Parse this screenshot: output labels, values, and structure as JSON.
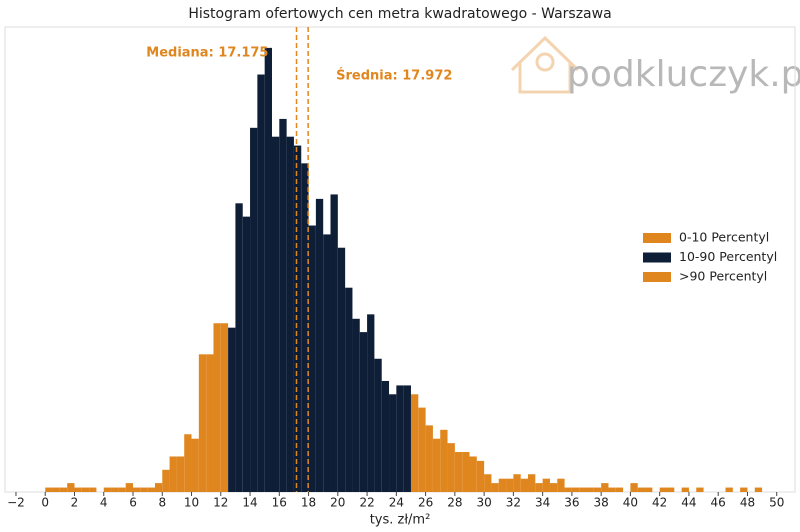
{
  "chart_data": {
    "type": "histogram",
    "title": "Histogram ofertowych cen metra kwadratowego - Warszawa",
    "xlabel": "tys. zł/m²",
    "watermark": "podkluczyk.pl",
    "series": [
      {
        "name": "0-10 Percentyl",
        "color": "#e0861f",
        "bins": [
          0,
          0.5,
          1,
          1.5,
          2,
          2.5,
          3,
          3.5,
          4,
          4.5,
          5,
          5.5,
          6,
          6.5,
          7,
          7.5,
          8,
          8.5,
          9,
          9.5,
          10,
          10.5,
          11,
          11.5,
          12,
          12.5
        ],
        "values": [
          1,
          1,
          1,
          2,
          1,
          1,
          1,
          0,
          1,
          1,
          1,
          2,
          1,
          1,
          1,
          2,
          5,
          8,
          8,
          13,
          12,
          31,
          31,
          38,
          38
        ]
      },
      {
        "name": "10-90 Percentyl",
        "color": "#0e1e37",
        "bins": [
          12.5,
          13,
          13.5,
          14,
          14.5,
          15,
          15.5,
          16,
          16.5,
          17,
          17.5,
          18,
          18.5,
          19,
          19.5,
          20,
          20.5,
          21,
          21.5,
          22,
          22.5,
          23,
          23.5,
          24,
          24.5,
          25
        ],
        "values": [
          37,
          65,
          62,
          82,
          94,
          100,
          80,
          84,
          80,
          78,
          74,
          60,
          66,
          58,
          67,
          55,
          46,
          39,
          36,
          40,
          30,
          25,
          22,
          24,
          24
        ]
      },
      {
        "name": ">90 Percentyl",
        "color": "#e0861f",
        "bins": [
          25,
          25.5,
          26,
          26.5,
          27,
          27.5,
          28,
          28.5,
          29,
          29.5,
          30,
          30.5,
          31,
          31.5,
          32,
          32.5,
          33,
          33.5,
          34,
          34.5,
          35,
          35.5,
          36,
          36.5,
          37,
          37.5,
          38,
          38.5,
          39,
          39.5,
          40,
          40.5,
          41,
          41.5,
          42,
          42.5,
          43,
          43.5,
          44,
          44.5,
          45,
          45.5,
          46,
          46.5,
          47,
          47.5,
          48,
          48.5,
          49,
          49.5,
          50
        ],
        "values": [
          22,
          19,
          15,
          12,
          14,
          11,
          9,
          9,
          8,
          7,
          4,
          2,
          3,
          3,
          4,
          3,
          4,
          2,
          3,
          2,
          3,
          1,
          1,
          1,
          1,
          1,
          2,
          1,
          1,
          0,
          2,
          1,
          1,
          0,
          1,
          1,
          0,
          1,
          0,
          1,
          0,
          0,
          0,
          1,
          0,
          1,
          0,
          1,
          0,
          0
        ]
      }
    ],
    "annotations": [
      {
        "text": "Mediana: 17.175",
        "x": 17.175,
        "color": "#e0861f"
      },
      {
        "text": "Średnia: 17.972",
        "x": 17.972,
        "color": "#e0861f"
      }
    ],
    "xlim": [
      -2.75,
      51.25
    ],
    "xticks": [
      {
        "value": -2,
        "label": "−2"
      },
      0,
      2,
      4,
      6,
      8,
      10,
      12,
      14,
      16,
      18,
      20,
      22,
      24,
      26,
      28,
      30,
      32,
      34,
      36,
      38,
      40,
      42,
      44,
      46,
      48,
      50
    ],
    "legend": "right"
  }
}
